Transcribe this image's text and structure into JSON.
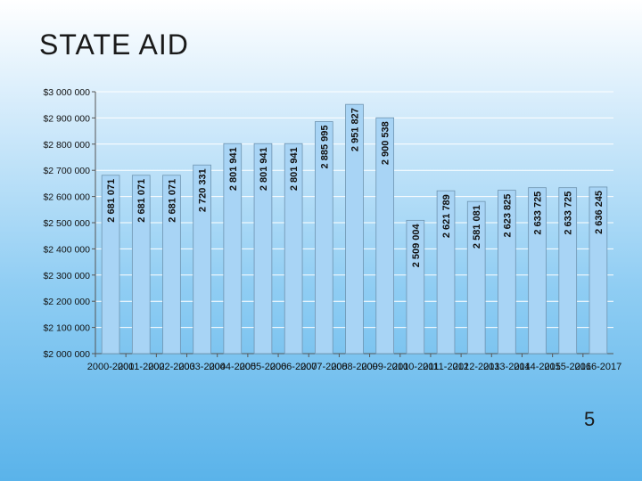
{
  "slide": {
    "title": "STATE AID",
    "page_number": "5"
  },
  "colors": {
    "bar_fill": "#a8d4f5",
    "bar_stroke": "#6f94b0",
    "grid": "#ffffff"
  },
  "chart_data": {
    "type": "bar",
    "title": "",
    "xlabel": "",
    "ylabel": "",
    "ylim": [
      2000000,
      3000000
    ],
    "grid": true,
    "y_ticks": [
      {
        "value": 2000000,
        "label": "$2 000 000"
      },
      {
        "value": 2100000,
        "label": "$2 100 000"
      },
      {
        "value": 2200000,
        "label": "$2 200 000"
      },
      {
        "value": 2300000,
        "label": "$2 300 000"
      },
      {
        "value": 2400000,
        "label": "$2 400 000"
      },
      {
        "value": 2500000,
        "label": "$2 500 000"
      },
      {
        "value": 2600000,
        "label": "$2 600 000"
      },
      {
        "value": 2700000,
        "label": "$2 700 000"
      },
      {
        "value": 2800000,
        "label": "$2 800 000"
      },
      {
        "value": 2900000,
        "label": "$2 900 000"
      },
      {
        "value": 3000000,
        "label": "$3 000 000"
      }
    ],
    "categories": [
      "2000-2001",
      "2001-2002",
      "2002-2003",
      "2003-2004",
      "2004-2005",
      "2005-2006",
      "2006-2007",
      "2007-2008",
      "2008-2009",
      "2009-2010",
      "2010-2011",
      "2011-2012",
      "2012-2013",
      "2013-2014",
      "2014-2015",
      "2015-2016",
      "2016-2017"
    ],
    "values": [
      2681071,
      2681071,
      2681071,
      2720331,
      2801941,
      2801941,
      2801941,
      2885995,
      2951827,
      2900538,
      2509004,
      2621789,
      2581081,
      2623825,
      2633725,
      2633725,
      2636245
    ],
    "value_labels": [
      "2 681 071",
      "2 681 071",
      "2 681 071",
      "2 720 331",
      "2 801 941",
      "2 801 941",
      "2 801 941",
      "2 885 995",
      "2 951 827",
      "2 900 538",
      "2 509 004",
      "2 621 789",
      "2 581 081",
      "2 623 825",
      "2 633 725",
      "2 633 725",
      "2 636 245"
    ]
  }
}
